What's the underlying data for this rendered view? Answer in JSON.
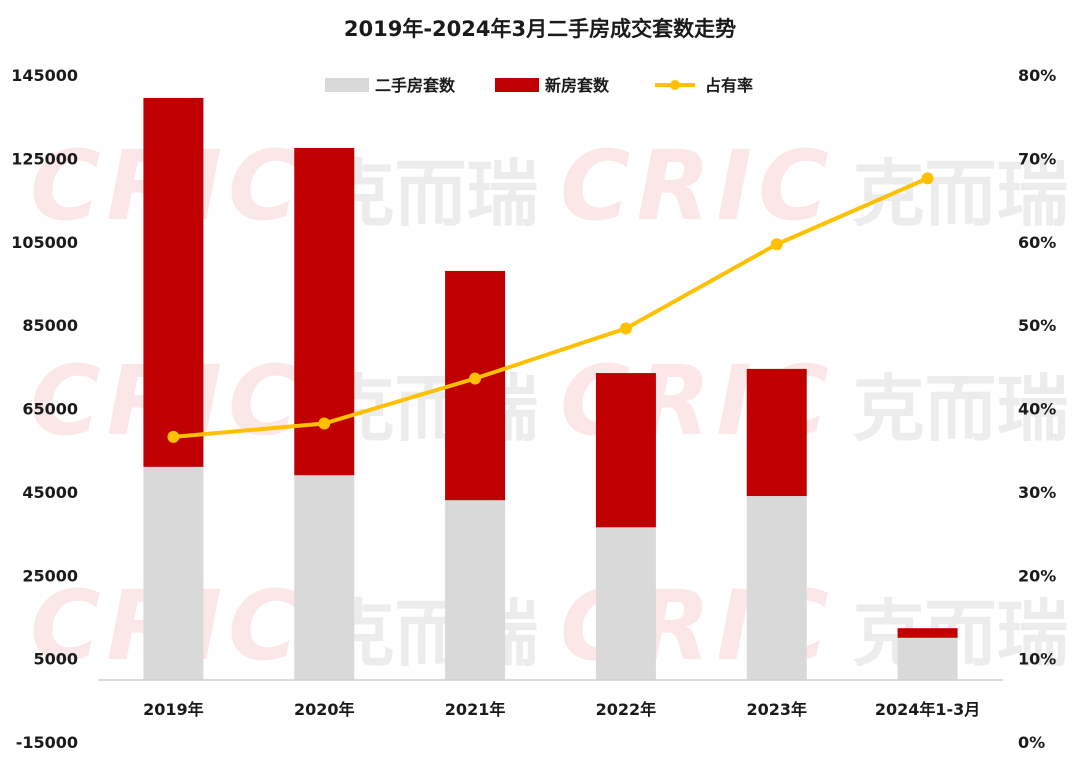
{
  "chart_data": {
    "type": "bar",
    "title": "2019年-2024年3月二手房成交套数走势",
    "categories": [
      "2019年",
      "2020年",
      "2021年",
      "2022年",
      "2023年",
      "2024年1-3月"
    ],
    "series": [
      {
        "name": "二手房套数",
        "kind": "bar",
        "stacked": true,
        "color": "#d9d9d9",
        "values": [
          51000,
          49000,
          43000,
          36500,
          44000,
          10000
        ]
      },
      {
        "name": "新房套数",
        "kind": "bar",
        "stacked": true,
        "color": "#c00000",
        "values": [
          88500,
          78500,
          55000,
          37000,
          30500,
          2300
        ]
      },
      {
        "name": "占有率",
        "kind": "line",
        "axis": "right",
        "color": "#ffc000",
        "values": [
          36.6,
          38.2,
          43.6,
          49.6,
          59.7,
          67.6
        ]
      }
    ],
    "y_left": {
      "min": -15000,
      "max": 145000,
      "ticks": [
        145000,
        125000,
        105000,
        85000,
        65000,
        45000,
        25000,
        5000,
        -15000
      ],
      "tick_labels": [
        "145000",
        "125000",
        "105000",
        "85000",
        "65000",
        "45000",
        "25000",
        "5000",
        "-15000"
      ]
    },
    "y_right": {
      "min": 0,
      "max": 80,
      "ticks": [
        80,
        70,
        60,
        50,
        40,
        30,
        20,
        10,
        0
      ],
      "tick_labels": [
        "80%",
        "70%",
        "60%",
        "50%",
        "40%",
        "30%",
        "20%",
        "10%",
        "0%"
      ]
    },
    "grid": false,
    "legend_position": "top-center"
  },
  "watermark": {
    "brand": "CRIC",
    "cn": "克而瑞"
  }
}
